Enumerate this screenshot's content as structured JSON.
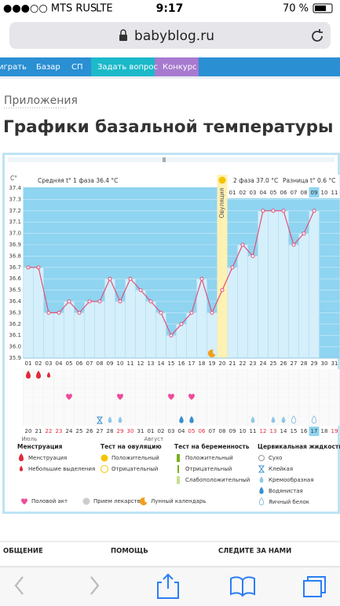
{
  "status": {
    "carrier": "●●●○○ MTS RUS",
    "network": "LTE",
    "time": "9:17",
    "battery": "70 %"
  },
  "browser": {
    "url": "babyblog.ru"
  },
  "nav": [
    "играть",
    "Базар",
    "СП",
    "Задать вопрос",
    "Конкурс"
  ],
  "breadcrumb": "Приложения",
  "title": "Графики базальной температуры",
  "chart_data": {
    "type": "line",
    "unit": "С°",
    "phase1_label": "Средняя t° 1 фаза 36.4 °C",
    "phase2_label": "2 фаза 37.0 °C",
    "diff_label": "Разница t° 0.6 °C",
    "ovulation_label": "Овуляция",
    "ovulation_day": "20",
    "categories": [
      "01",
      "02",
      "03",
      "04",
      "05",
      "06",
      "07",
      "08",
      "09",
      "10",
      "11",
      "12",
      "13",
      "14",
      "15",
      "16",
      "17",
      "18",
      "19",
      "20",
      "21",
      "22",
      "23",
      "24",
      "25",
      "26",
      "27",
      "28",
      "29",
      "30",
      "31"
    ],
    "values": [
      36.7,
      36.7,
      36.3,
      36.3,
      36.4,
      36.3,
      36.4,
      36.4,
      36.6,
      36.4,
      36.6,
      36.5,
      36.4,
      36.3,
      36.1,
      36.2,
      36.3,
      36.6,
      36.3,
      36.5,
      36.7,
      36.9,
      36.8,
      37.2,
      37.2,
      37.2,
      36.9,
      37.0,
      37.2,
      null,
      null
    ],
    "phase2_days": [
      null,
      null,
      null,
      null,
      null,
      null,
      null,
      null,
      null,
      null,
      null,
      null,
      null,
      null,
      null,
      null,
      null,
      null,
      null,
      null,
      "01",
      "02",
      "03",
      "04",
      "05",
      "06",
      "07",
      "08",
      "09",
      "10",
      "11"
    ],
    "dates": [
      "20",
      "21",
      "22",
      "23",
      "24",
      "25",
      "26",
      "27",
      "28",
      "29",
      "30",
      "31",
      "01",
      "02",
      "03",
      "04",
      "05",
      "06",
      "07",
      "08",
      "09",
      "10",
      "11",
      "12",
      "13",
      "14",
      "15",
      "16",
      "17",
      "18",
      "19"
    ],
    "weekends": [
      "22",
      "23",
      "29",
      "30",
      "05",
      "06",
      "12",
      "13",
      "19"
    ],
    "today": "17",
    "months": [
      {
        "label": "Июль",
        "day": "01"
      },
      {
        "label": "Август",
        "day": "13"
      }
    ],
    "color": "#e0507a",
    "ylim": [
      35.9,
      37.4
    ],
    "yticks": [
      35.9,
      {
        "value": 36,
        "label": "36.0"
      },
      36.1,
      36.2,
      36.3,
      36.4,
      36.5,
      36.6,
      36.7,
      36.8,
      36.9,
      {
        "value": 37,
        "label": "37.0"
      },
      37.1,
      37.2,
      37.3,
      37.4
    ],
    "grid": true,
    "markers": [
      {
        "day": "01",
        "kind": "menstruation"
      },
      {
        "day": "02",
        "kind": "menstruation"
      },
      {
        "day": "03",
        "kind": "spotting"
      },
      {
        "day": "05",
        "kind": "sex"
      },
      {
        "day": "10",
        "kind": "sex"
      },
      {
        "day": "15",
        "kind": "sex"
      },
      {
        "day": "17",
        "kind": "sex"
      },
      {
        "day": "08",
        "kind": "sticky"
      },
      {
        "day": "09",
        "kind": "creamy"
      },
      {
        "day": "10",
        "kind": "creamy"
      },
      {
        "day": "16",
        "kind": "watery"
      },
      {
        "day": "17",
        "kind": "watery"
      },
      {
        "day": "23",
        "kind": "creamy"
      },
      {
        "day": "25",
        "kind": "creamy"
      },
      {
        "day": "26",
        "kind": "creamy"
      },
      {
        "day": "27",
        "kind": "egg"
      },
      {
        "day": "29",
        "kind": "egg"
      },
      {
        "day": "19",
        "kind": "moon"
      }
    ]
  },
  "legend": {
    "groups": [
      {
        "title": "Менструация",
        "items": [
          "Менструация",
          "Небольшие выделения"
        ]
      },
      {
        "title": "Тест на овуляцию",
        "items": [
          "Положительный",
          "Отрицательный"
        ]
      },
      {
        "title": "Тест на беременность",
        "items": [
          "Положительный",
          "Отрицательный",
          "Слабоположительный"
        ]
      },
      {
        "title": "Цервикальная жидкость",
        "items": [
          "Сухо",
          "Клейкая",
          "Кремообразная",
          "Водянистая",
          "Яичный белок"
        ]
      }
    ],
    "extra": [
      "Половой акт",
      "Прием лекарств",
      "Лунный календарь"
    ]
  },
  "footer": [
    "ОБЩЕНИЕ",
    "ПОМОЩЬ",
    "СЛЕДИТЕ ЗА НАМИ"
  ]
}
